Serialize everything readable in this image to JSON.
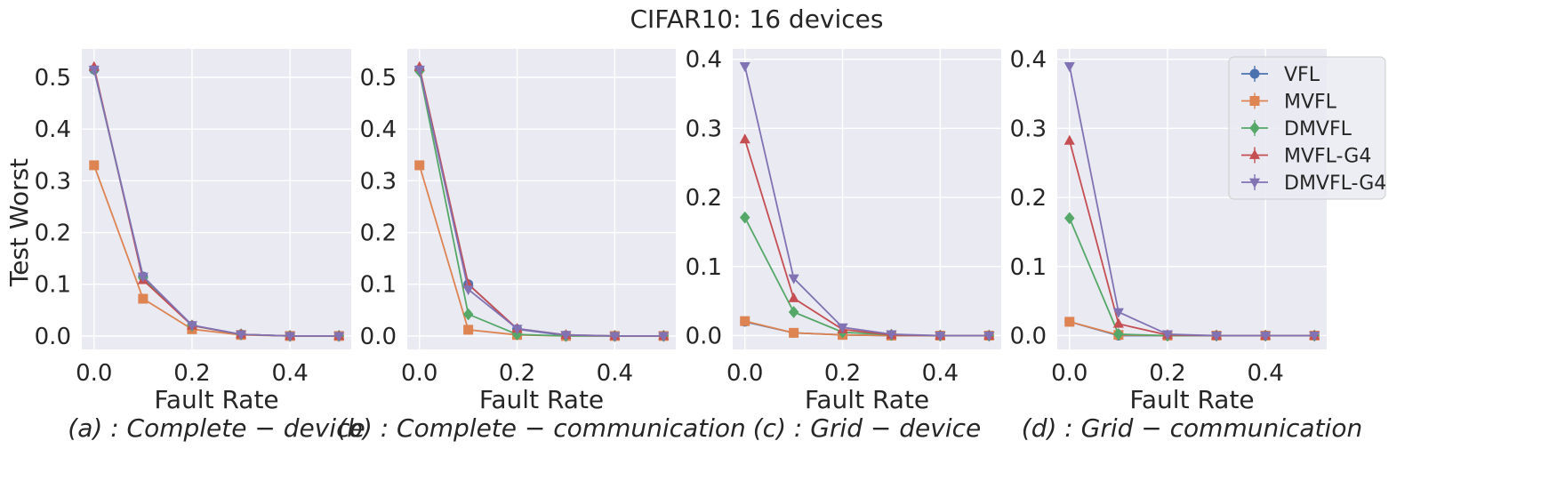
{
  "figure": {
    "title": "CIFAR10: 16 devices",
    "ylabel": "Test Worst"
  },
  "legend": {
    "placement": "upper-right",
    "entries": [
      "VFL",
      "MVFL",
      "DMVFL",
      "MVFL-G4",
      "DMVFL-G4"
    ]
  },
  "colors": {
    "VFL": "#4c72b0",
    "MVFL": "#dd8452",
    "DMVFL": "#55a868",
    "MVFL-G4": "#c44e52",
    "DMVFL-G4": "#8172b3",
    "plot_background": "#eaeaf2",
    "grid": "#ffffff"
  },
  "chart_data": [
    {
      "type": "line",
      "subtitle": "(a) : Complete − device",
      "xlabel": "Fault Rate",
      "ylabel": "Test Worst",
      "xlim": [
        -0.025,
        0.525
      ],
      "ylim": [
        -0.026,
        0.555
      ],
      "xticks": [
        "0.0",
        "0.2",
        "0.4"
      ],
      "yticks": [
        "0.0",
        "0.1",
        "0.2",
        "0.3",
        "0.4",
        "0.5"
      ],
      "grid": true,
      "x": [
        0.0,
        0.1,
        0.2,
        0.3,
        0.4,
        0.5
      ],
      "series": [
        {
          "name": "VFL",
          "marker": "circle",
          "values": [
            0.515,
            0.115,
            0.02,
            0.003,
            0.0,
            0.0
          ]
        },
        {
          "name": "MVFL",
          "marker": "square",
          "values": [
            0.33,
            0.072,
            0.013,
            0.002,
            0.0,
            0.0
          ]
        },
        {
          "name": "DMVFL",
          "marker": "diamond",
          "values": [
            0.515,
            0.112,
            0.02,
            0.003,
            0.0,
            0.0
          ]
        },
        {
          "name": "MVFL-G4",
          "marker": "triangle-up",
          "values": [
            0.52,
            0.108,
            0.02,
            0.003,
            0.0,
            0.0
          ]
        },
        {
          "name": "DMVFL-G4",
          "marker": "triangle-down",
          "values": [
            0.515,
            0.115,
            0.021,
            0.003,
            0.0,
            0.0
          ]
        }
      ]
    },
    {
      "type": "line",
      "subtitle": "(b) : Complete − communication",
      "xlabel": "Fault Rate",
      "ylabel": "",
      "xlim": [
        -0.025,
        0.525
      ],
      "ylim": [
        -0.026,
        0.555
      ],
      "xticks": [
        "0.0",
        "0.2",
        "0.4"
      ],
      "yticks": [
        "0.0",
        "0.1",
        "0.2",
        "0.3",
        "0.4",
        "0.5"
      ],
      "grid": true,
      "x": [
        0.0,
        0.1,
        0.2,
        0.3,
        0.4,
        0.5
      ],
      "series": [
        {
          "name": "VFL",
          "marker": "circle",
          "values": [
            0.515,
            0.1,
            0.013,
            0.001,
            0.0,
            0.0
          ]
        },
        {
          "name": "MVFL",
          "marker": "square",
          "values": [
            0.33,
            0.012,
            0.002,
            0.0,
            0.0,
            0.0
          ]
        },
        {
          "name": "DMVFL",
          "marker": "diamond",
          "values": [
            0.512,
            0.042,
            0.003,
            0.0,
            0.0,
            0.0
          ]
        },
        {
          "name": "MVFL-G4",
          "marker": "triangle-up",
          "values": [
            0.52,
            0.1,
            0.014,
            0.002,
            0.0,
            0.0
          ]
        },
        {
          "name": "DMVFL-G4",
          "marker": "triangle-down",
          "values": [
            0.515,
            0.09,
            0.014,
            0.002,
            0.0,
            0.0
          ]
        }
      ]
    },
    {
      "type": "line",
      "subtitle": "(c) : Grid − device",
      "xlabel": "Fault Rate",
      "ylabel": "",
      "xlim": [
        -0.025,
        0.525
      ],
      "ylim": [
        -0.02,
        0.415
      ],
      "xticks": [
        "0.0",
        "0.2",
        "0.4"
      ],
      "yticks": [
        "0.0",
        "0.1",
        "0.2",
        "0.3",
        "0.4"
      ],
      "grid": true,
      "x": [
        0.0,
        0.1,
        0.2,
        0.3,
        0.4,
        0.5
      ],
      "series": [
        {
          "name": "VFL",
          "marker": "circle",
          "values": [
            0.02,
            0.004,
            0.001,
            0.0,
            0.0,
            0.0
          ]
        },
        {
          "name": "MVFL",
          "marker": "square",
          "values": [
            0.021,
            0.004,
            0.001,
            0.0,
            0.0,
            0.0
          ]
        },
        {
          "name": "DMVFL",
          "marker": "diamond",
          "values": [
            0.171,
            0.034,
            0.005,
            0.001,
            0.0,
            0.0
          ]
        },
        {
          "name": "MVFL-G4",
          "marker": "triangle-up",
          "values": [
            0.284,
            0.054,
            0.009,
            0.001,
            0.0,
            0.0
          ]
        },
        {
          "name": "DMVFL-G4",
          "marker": "triangle-down",
          "values": [
            0.39,
            0.083,
            0.012,
            0.002,
            0.0,
            0.0
          ]
        }
      ]
    },
    {
      "type": "line",
      "subtitle": "(d) : Grid − communication",
      "xlabel": "Fault Rate",
      "ylabel": "",
      "xlim": [
        -0.025,
        0.525
      ],
      "ylim": [
        -0.02,
        0.415
      ],
      "xticks": [
        "0.0",
        "0.2",
        "0.4"
      ],
      "yticks": [
        "0.0",
        "0.1",
        "0.2",
        "0.3",
        "0.4"
      ],
      "grid": true,
      "x": [
        0.0,
        0.1,
        0.2,
        0.3,
        0.4,
        0.5
      ],
      "series": [
        {
          "name": "VFL",
          "marker": "circle",
          "values": [
            0.02,
            0.0,
            0.0,
            0.0,
            0.0,
            0.0
          ]
        },
        {
          "name": "MVFL",
          "marker": "square",
          "values": [
            0.02,
            0.001,
            0.0,
            0.0,
            0.0,
            0.0
          ]
        },
        {
          "name": "DMVFL",
          "marker": "diamond",
          "values": [
            0.17,
            0.002,
            0.0,
            0.0,
            0.0,
            0.0
          ]
        },
        {
          "name": "MVFL-G4",
          "marker": "triangle-up",
          "values": [
            0.282,
            0.017,
            0.001,
            0.0,
            0.0,
            0.0
          ]
        },
        {
          "name": "DMVFL-G4",
          "marker": "triangle-down",
          "values": [
            0.39,
            0.034,
            0.002,
            0.0,
            0.0,
            0.0
          ]
        }
      ]
    }
  ]
}
